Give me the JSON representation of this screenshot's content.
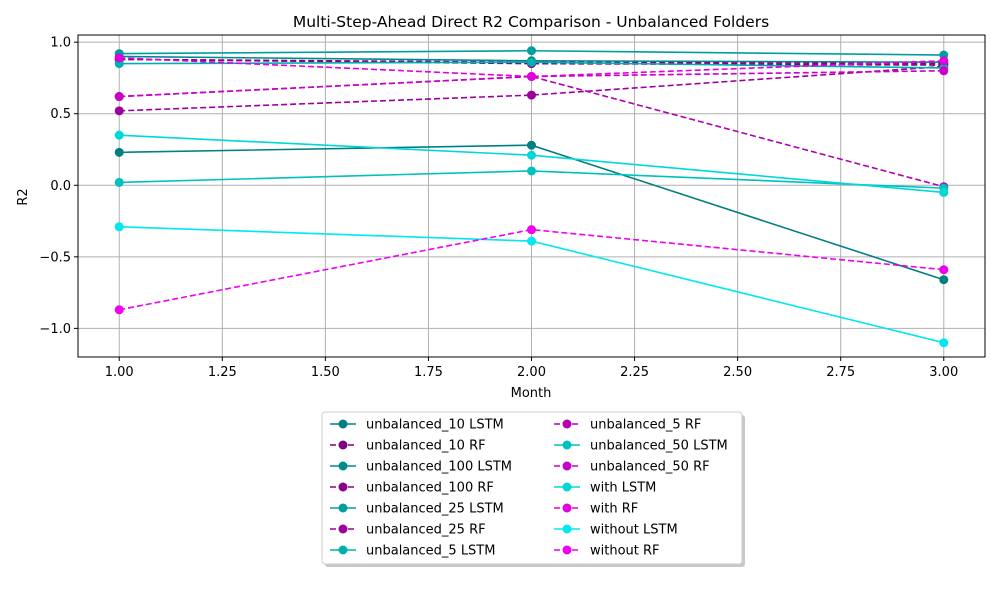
{
  "chart_data": {
    "type": "line",
    "title": "Multi-Step-Ahead Direct R2 Comparison - Unbalanced Folders",
    "xlabel": "Month",
    "ylabel": "R2",
    "x": [
      1.0,
      2.0,
      3.0
    ],
    "xlim": [
      0.9,
      3.1
    ],
    "ylim": [
      -1.2,
      1.05
    ],
    "xticks": [
      "1.00",
      "1.25",
      "1.50",
      "1.75",
      "2.00",
      "2.25",
      "2.50",
      "2.75",
      "3.00"
    ],
    "yticks": [
      "−1.0",
      "−0.5",
      "0.0",
      "0.5",
      "1.0"
    ],
    "grid": true,
    "legend_position": "bottom-center",
    "series": [
      {
        "name": "unbalanced_10 LSTM",
        "values": [
          0.23,
          0.28,
          -0.66
        ],
        "color": "#008080",
        "dashed": false
      },
      {
        "name": "unbalanced_10 RF",
        "values": [
          0.88,
          0.85,
          0.84
        ],
        "color": "#800080",
        "dashed": true
      },
      {
        "name": "unbalanced_100 LSTM",
        "values": [
          0.9,
          0.87,
          0.86
        ],
        "color": "#008b8b",
        "dashed": false
      },
      {
        "name": "unbalanced_100 RF",
        "values": [
          0.88,
          0.86,
          0.85
        ],
        "color": "#8b008b",
        "dashed": true
      },
      {
        "name": "unbalanced_25 LSTM",
        "values": [
          0.92,
          0.94,
          0.91
        ],
        "color": "#009e9e",
        "dashed": false
      },
      {
        "name": "unbalanced_25 RF",
        "values": [
          0.52,
          0.63,
          0.83
        ],
        "color": "#9e009e",
        "dashed": true
      },
      {
        "name": "unbalanced_5 LSTM",
        "values": [
          0.85,
          0.86,
          0.82
        ],
        "color": "#00b0b0",
        "dashed": false
      },
      {
        "name": "unbalanced_5 RF",
        "values": [
          0.62,
          0.76,
          -0.01
        ],
        "color": "#b000b0",
        "dashed": true
      },
      {
        "name": "unbalanced_50 LSTM",
        "values": [
          0.02,
          0.1,
          -0.02
        ],
        "color": "#00c0c0",
        "dashed": false
      },
      {
        "name": "unbalanced_50 RF",
        "values": [
          0.62,
          0.76,
          0.8
        ],
        "color": "#c800c8",
        "dashed": true
      },
      {
        "name": "with LSTM",
        "values": [
          0.35,
          0.21,
          -0.05
        ],
        "color": "#00d8d8",
        "dashed": false
      },
      {
        "name": "with RF",
        "values": [
          0.89,
          0.76,
          0.87
        ],
        "color": "#e000e0",
        "dashed": true
      },
      {
        "name": "without LSTM",
        "values": [
          -0.29,
          -0.39,
          -1.1
        ],
        "color": "#00e8f0",
        "dashed": false
      },
      {
        "name": "without RF",
        "values": [
          -0.87,
          -0.31,
          -0.59
        ],
        "color": "#f000f0",
        "dashed": true
      }
    ]
  }
}
